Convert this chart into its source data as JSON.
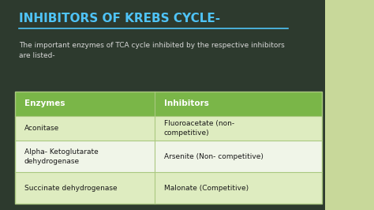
{
  "title": "INHIBITORS OF KREBS CYCLE-",
  "subtitle": "The important enzymes of TCA cycle inhibited by the respective inhibitors\nare listed-",
  "bg_color": "#2d3a2e",
  "bg_right_color": "#c8d89a",
  "table_header_bg": "#7ab648",
  "table_row_bg_light": "#deecc0",
  "table_row_bg_white": "#f0f5e8",
  "table_border_color": "#aac880",
  "title_color": "#4fc3f7",
  "title_underline_color": "#4fc3f7",
  "subtitle_color": "#d8d8d8",
  "header_text_color": "#ffffff",
  "cell_text_color": "#1a1a1a",
  "col1_header": "Enzymes",
  "col2_header": "Inhibitors",
  "rows": [
    [
      "Aconitase",
      "Fluoroacetate (non-\ncompetitive)"
    ],
    [
      "Alpha- Ketoglutarate\ndehydrogenase",
      "Arsenite (Non- competitive)"
    ],
    [
      "Succinate dehydrogenase",
      "Malonate (Competitive)"
    ]
  ]
}
